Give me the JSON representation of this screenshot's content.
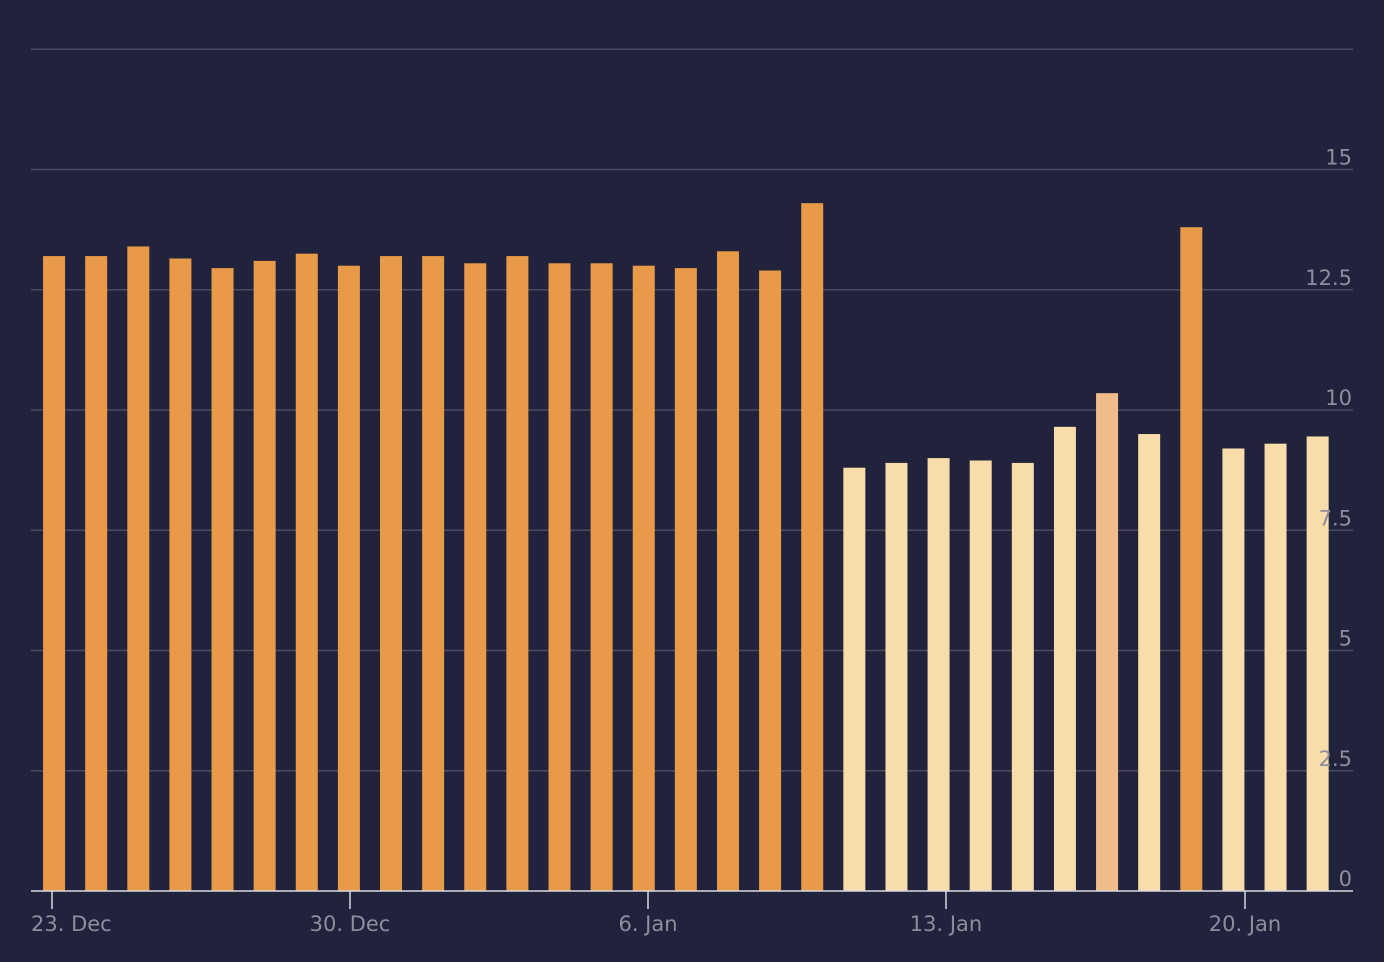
{
  "chart_data": {
    "type": "bar",
    "title": "",
    "xlabel": "",
    "ylabel": "",
    "ylim": [
      0,
      17.5
    ],
    "grid": true,
    "y_axis_position": "right",
    "y_ticks": [
      {
        "value": 0,
        "label": "0"
      },
      {
        "value": 2.5,
        "label": "2.5"
      },
      {
        "value": 5,
        "label": "5"
      },
      {
        "value": 7.5,
        "label": "7.5"
      },
      {
        "value": 10,
        "label": "10"
      },
      {
        "value": 12.5,
        "label": "12.5"
      },
      {
        "value": 15,
        "label": "15"
      }
    ],
    "x_ticks": [
      {
        "index": 0,
        "label": "23. Dec"
      },
      {
        "index": 7,
        "label": "30. Dec"
      },
      {
        "index": 14,
        "label": "6. Jan"
      },
      {
        "index": 21,
        "label": "13. Jan"
      },
      {
        "index": 28,
        "label": "20. Jan"
      }
    ],
    "colors": {
      "orange": "#e89a49",
      "light": "#f8dcaa",
      "mid": "#f0bd89"
    },
    "categories": [
      "23. Dec",
      "24. Dec",
      "25. Dec",
      "26. Dec",
      "27. Dec",
      "28. Dec",
      "29. Dec",
      "30. Dec",
      "31. Dec",
      "1. Jan",
      "2. Jan",
      "3. Jan",
      "4. Jan",
      "5. Jan",
      "6. Jan",
      "7. Jan",
      "8. Jan",
      "9. Jan",
      "10. Jan",
      "11. Jan",
      "12. Jan",
      "13. Jan",
      "14. Jan",
      "15. Jan",
      "16. Jan",
      "17. Jan",
      "18. Jan",
      "19. Jan",
      "20. Jan",
      "21. Jan",
      "22. Jan"
    ],
    "values": [
      13.2,
      13.2,
      13.4,
      13.15,
      12.95,
      13.1,
      13.25,
      13.0,
      13.2,
      13.2,
      13.05,
      13.2,
      13.05,
      13.05,
      13.0,
      12.95,
      13.3,
      12.9,
      14.3,
      8.8,
      8.9,
      9.0,
      8.95,
      8.9,
      9.65,
      10.35,
      9.5,
      13.8,
      9.2,
      9.3,
      9.45
    ],
    "bar_colors": [
      "orange",
      "orange",
      "orange",
      "orange",
      "orange",
      "orange",
      "orange",
      "orange",
      "orange",
      "orange",
      "orange",
      "orange",
      "orange",
      "orange",
      "orange",
      "orange",
      "orange",
      "orange",
      "orange",
      "light",
      "light",
      "light",
      "light",
      "light",
      "light",
      "mid",
      "light",
      "orange",
      "light",
      "light",
      "light"
    ]
  }
}
